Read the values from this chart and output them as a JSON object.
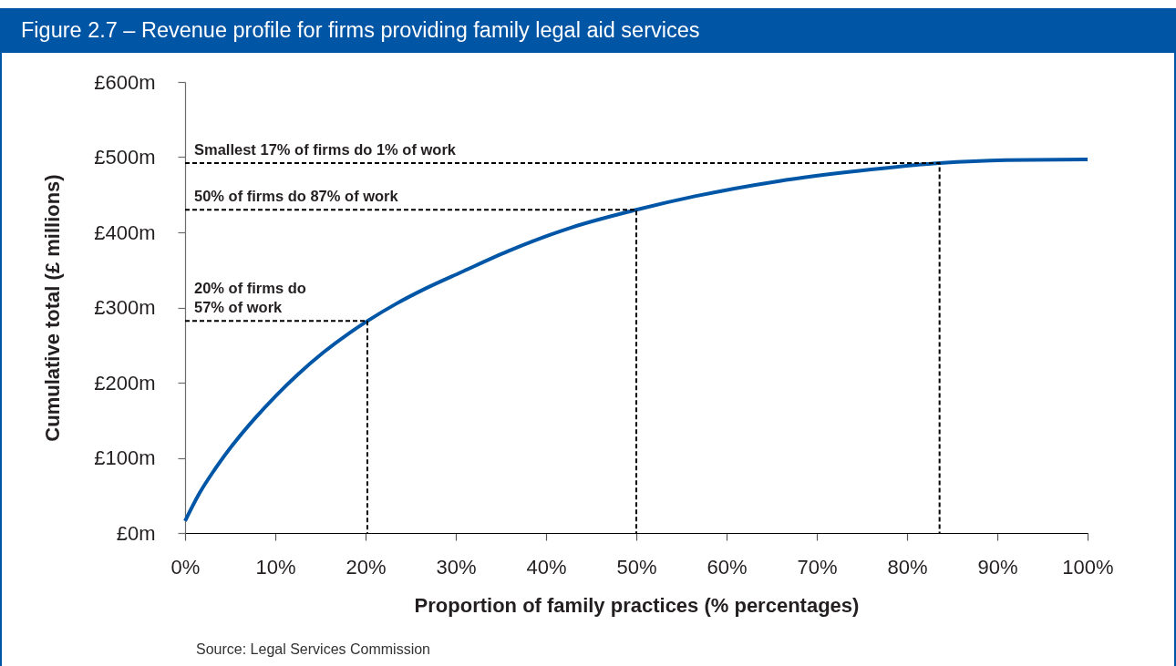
{
  "chart_data": {
    "type": "line",
    "title": "Figure 2.7 – Revenue profile for firms providing family legal aid services",
    "xlabel": "Proportion of family practices (% percentages)",
    "ylabel": "Cumulative total (£ millions)",
    "xlim": [
      0,
      100
    ],
    "ylim": [
      0,
      600
    ],
    "xticks": [
      {
        "value": 0,
        "label": "0%"
      },
      {
        "value": 10,
        "label": "10%"
      },
      {
        "value": 20,
        "label": "20%"
      },
      {
        "value": 30,
        "label": "30%"
      },
      {
        "value": 40,
        "label": "40%"
      },
      {
        "value": 50,
        "label": "50%"
      },
      {
        "value": 60,
        "label": "60%"
      },
      {
        "value": 70,
        "label": "70%"
      },
      {
        "value": 80,
        "label": "80%"
      },
      {
        "value": 90,
        "label": "90%"
      },
      {
        "value": 100,
        "label": "100%"
      }
    ],
    "yticks": [
      {
        "value": 0,
        "label": "£0m"
      },
      {
        "value": 100,
        "label": "£100m"
      },
      {
        "value": 200,
        "label": "£200m"
      },
      {
        "value": 300,
        "label": "£300m"
      },
      {
        "value": 400,
        "label": "£400m"
      },
      {
        "value": 500,
        "label": "£500m"
      },
      {
        "value": 600,
        "label": "£600m"
      }
    ],
    "series": [
      {
        "color": "#0056a6",
        "x": [
          0,
          1.6,
          3.2,
          5.2,
          7.7,
          10.1,
          12.5,
          15.3,
          18.2,
          20.2,
          23.4,
          26.6,
          30.6,
          35.8,
          42.7,
          50,
          56.5,
          65.7,
          74.9,
          83.6,
          90.9,
          100
        ],
        "values": [
          16,
          53,
          83,
          116,
          152,
          183,
          211,
          240,
          266,
          282,
          305,
          325,
          347,
          375,
          406,
          430,
          448,
          468,
          482,
          492,
          496,
          497
        ]
      },
      {
        "type": "line",
        "line_style": "dashed",
        "color": "#000000",
        "x": [
          0,
          20.2,
          20.2
        ],
        "values": [
          282,
          282,
          0
        ]
      },
      {
        "type": "line",
        "line_style": "dashed",
        "color": "#000000",
        "x": [
          0,
          50,
          50
        ],
        "values": [
          430,
          430,
          0
        ]
      },
      {
        "type": "line",
        "line_style": "dashed",
        "color": "#000000",
        "x": [
          0,
          83.6,
          83.6
        ],
        "values": [
          492,
          492,
          0
        ]
      }
    ],
    "annotations": [
      {
        "text": "Smallest 17% of firms do 1% of work",
        "y": 492
      },
      {
        "text": "50% of firms do 87% of work",
        "y": 430
      },
      {
        "text": "20% of firms do\n57% of work",
        "y": 282
      },
      "Source: Legal Services Commission"
    ]
  }
}
